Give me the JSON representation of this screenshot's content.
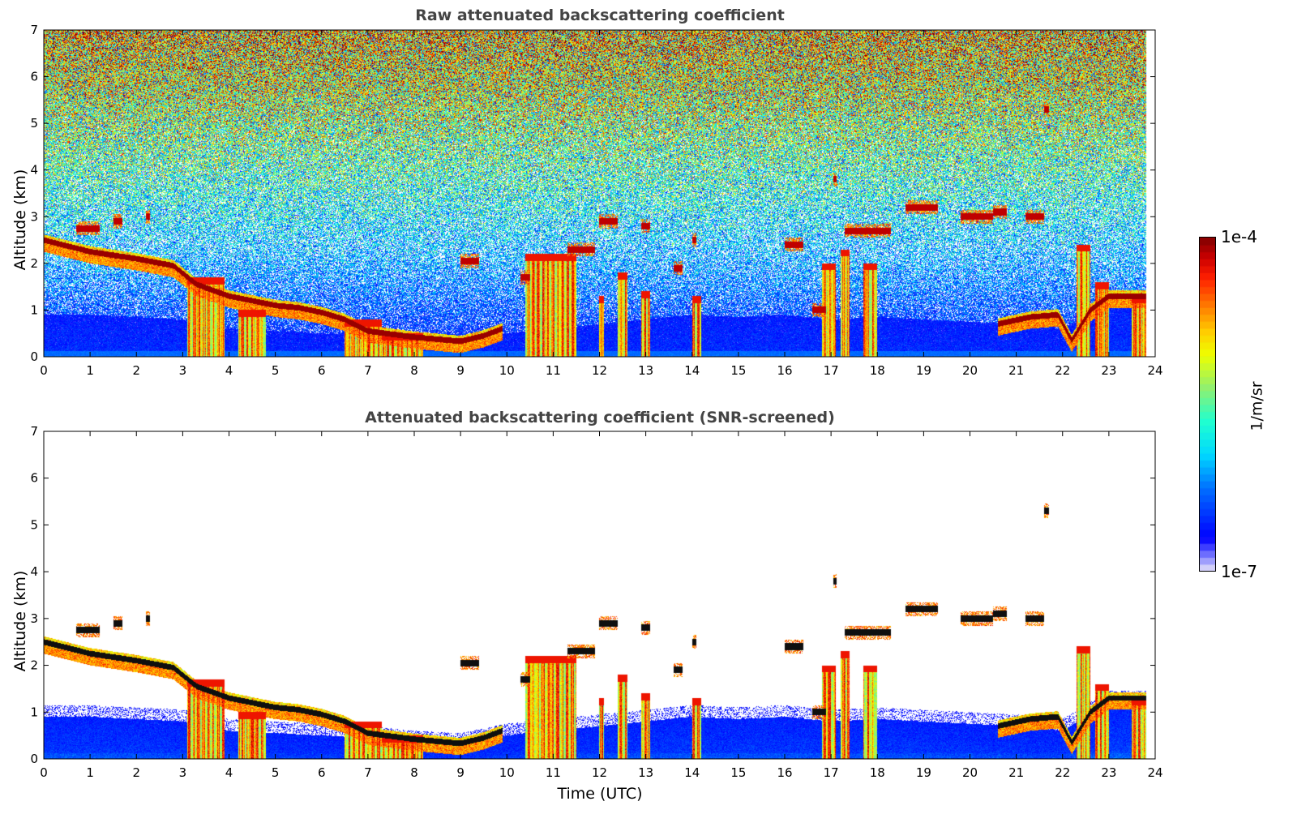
{
  "chart_data": [
    {
      "type": "heatmap",
      "id": "raw",
      "title": "Raw attenuated backscattering coefficient",
      "xlabel": "",
      "ylabel": "Altitude (km)",
      "xlim": [
        0,
        24
      ],
      "ylim": [
        0,
        7
      ],
      "xticks": [
        0,
        1,
        2,
        3,
        4,
        5,
        6,
        7,
        8,
        9,
        10,
        11,
        12,
        13,
        14,
        15,
        16,
        17,
        18,
        19,
        20,
        21,
        22,
        23,
        24
      ],
      "yticks": [
        0,
        1,
        2,
        3,
        4,
        5,
        6,
        7
      ],
      "screened": false
    },
    {
      "type": "heatmap",
      "id": "snr",
      "title": "Attenuated backscattering coefficient (SNR-screened)",
      "xlabel": "Time (UTC)",
      "ylabel": "Altitude (km)",
      "xlim": [
        0,
        24
      ],
      "ylim": [
        0,
        7
      ],
      "xticks": [
        0,
        1,
        2,
        3,
        4,
        5,
        6,
        7,
        8,
        9,
        10,
        11,
        12,
        13,
        14,
        15,
        16,
        17,
        18,
        19,
        20,
        21,
        22,
        23,
        24
      ],
      "yticks": [
        0,
        1,
        2,
        3,
        4,
        5,
        6,
        7
      ],
      "screened": true
    }
  ],
  "colorbar": {
    "label": "1/m/sr",
    "min_label": "1e-7",
    "max_label": "1e-4",
    "scale": "log",
    "range": [
      1e-07,
      0.0001
    ],
    "colors": [
      "#ebe8f8",
      "#5a5aff",
      "#0000ff",
      "#0070ff",
      "#00d8ff",
      "#20ffd0",
      "#90f070",
      "#eeff00",
      "#ffcc00",
      "#ff7700",
      "#ff2000",
      "#cc0000",
      "#800000"
    ]
  },
  "features": {
    "data_end_hour": 23.8,
    "aerosol_top_km_hourly": [
      0.9,
      0.9,
      0.85,
      0.8,
      0.6,
      0.55,
      0.5,
      0.45,
      0.35,
      0.3,
      0.5,
      0.6,
      0.7,
      0.8,
      0.9,
      0.85,
      0.9,
      0.8,
      0.85,
      0.8,
      0.75,
      0.7,
      0.6,
      1.2,
      1.2
    ],
    "main_cloud_layer": [
      [
        0,
        2.5
      ],
      [
        1,
        2.25
      ],
      [
        2,
        2.1
      ],
      [
        2.8,
        1.95
      ],
      [
        3.3,
        1.55
      ],
      [
        4,
        1.3
      ],
      [
        5,
        1.1
      ],
      [
        5.5,
        1.05
      ],
      [
        6,
        0.95
      ],
      [
        6.5,
        0.8
      ],
      [
        7,
        0.55
      ],
      [
        8,
        0.42
      ],
      [
        9,
        0.33
      ],
      [
        9.5,
        0.45
      ],
      [
        9.9,
        0.6
      ]
    ],
    "late_cloud_layer": [
      [
        20.6,
        0.7
      ],
      [
        21.3,
        0.85
      ],
      [
        21.9,
        0.9
      ],
      [
        22.2,
        0.35
      ],
      [
        22.6,
        1.0
      ],
      [
        23,
        1.3
      ],
      [
        23.8,
        1.3
      ]
    ],
    "cloud_segments_t0_t1_alt": [
      [
        0.7,
        1.2,
        2.75
      ],
      [
        1.5,
        1.7,
        2.9
      ],
      [
        2.2,
        2.3,
        3.0
      ],
      [
        9,
        9.4,
        2.05
      ],
      [
        10.3,
        10.5,
        1.7
      ],
      [
        11.3,
        11.9,
        2.3
      ],
      [
        12.0,
        12.4,
        2.9
      ],
      [
        12.9,
        13.1,
        2.8
      ],
      [
        13.6,
        13.8,
        1.9
      ],
      [
        14.0,
        14.1,
        2.5
      ],
      [
        16.0,
        16.4,
        2.4
      ],
      [
        16.6,
        16.9,
        1.0
      ],
      [
        17.05,
        17.12,
        3.8
      ],
      [
        17.3,
        18.3,
        2.7
      ],
      [
        18.6,
        19.3,
        3.2
      ],
      [
        19.8,
        20.5,
        3.0
      ],
      [
        20.5,
        20.8,
        3.1
      ],
      [
        21.2,
        21.6,
        3.0
      ],
      [
        21.6,
        21.7,
        5.3
      ]
    ],
    "precip_columns_t0_t1_top": [
      [
        3.1,
        3.9,
        1.7
      ],
      [
        4.2,
        4.8,
        1.0
      ],
      [
        6.5,
        7.3,
        0.8
      ],
      [
        7.3,
        8.2,
        0.5
      ],
      [
        10.4,
        11.5,
        2.2
      ],
      [
        12.0,
        12.1,
        1.3
      ],
      [
        12.4,
        12.6,
        1.8
      ],
      [
        12.9,
        13.1,
        1.4
      ],
      [
        14.0,
        14.2,
        1.3
      ],
      [
        16.8,
        17.1,
        2.0
      ],
      [
        17.2,
        17.4,
        2.3
      ],
      [
        17.7,
        18.0,
        2.0
      ],
      [
        22.3,
        22.6,
        2.4
      ],
      [
        22.7,
        23.0,
        1.6
      ],
      [
        23.5,
        23.8,
        1.3
      ]
    ]
  }
}
